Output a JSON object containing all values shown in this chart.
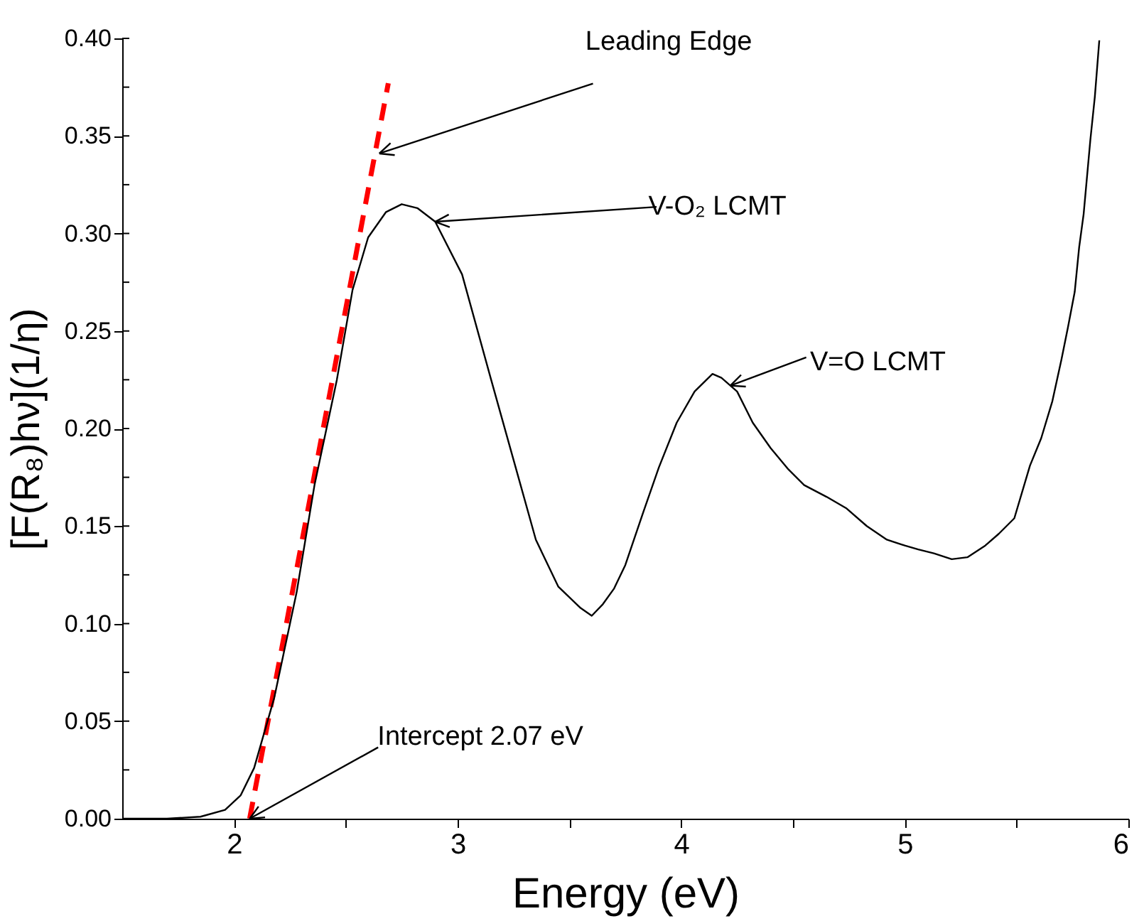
{
  "chart_data": {
    "type": "line",
    "xlabel": "Energy (eV)",
    "ylabel": "[F(R₈)hν](1/η)",
    "xlim": [
      1.5,
      6
    ],
    "ylim": [
      0,
      0.4
    ],
    "xticks": [
      {
        "value": 2,
        "label": "2"
      },
      {
        "value": 2.5,
        "label": null
      },
      {
        "value": 3,
        "label": "3"
      },
      {
        "value": 3.5,
        "label": null
      },
      {
        "value": 4,
        "label": "4"
      },
      {
        "value": 4.5,
        "label": null
      },
      {
        "value": 5,
        "label": "5"
      },
      {
        "value": 5.5,
        "label": null
      },
      {
        "value": 6,
        "label": "6"
      }
    ],
    "yticks": [
      {
        "value": 0,
        "label": "0.00"
      },
      {
        "value": 0.025,
        "label": null
      },
      {
        "value": 0.05,
        "label": "0.05"
      },
      {
        "value": 0.075,
        "label": null
      },
      {
        "value": 0.1,
        "label": "0.10"
      },
      {
        "value": 0.125,
        "label": null
      },
      {
        "value": 0.15,
        "label": "0.15"
      },
      {
        "value": 0.175,
        "label": null
      },
      {
        "value": 0.2,
        "label": "0.20"
      },
      {
        "value": 0.225,
        "label": null
      },
      {
        "value": 0.25,
        "label": "0.25"
      },
      {
        "value": 0.275,
        "label": null
      },
      {
        "value": 0.3,
        "label": "0.30"
      },
      {
        "value": 0.325,
        "label": null
      },
      {
        "value": 0.35,
        "label": "0.35"
      },
      {
        "value": 0.375,
        "label": null
      },
      {
        "value": 0.4,
        "label": "0.40"
      }
    ],
    "grid": false,
    "marker": "none",
    "series": [
      {
        "color": "#000000",
        "line_style": "solid",
        "x": [
          1.5,
          1.7,
          1.85,
          1.96,
          2.03,
          2.09,
          2.18,
          2.28,
          2.36,
          2.46,
          2.53,
          2.6,
          2.68,
          2.75,
          2.82,
          2.9,
          3.02,
          3.15,
          3.25,
          3.35,
          3.45,
          3.55,
          3.6,
          3.65,
          3.7,
          3.75,
          3.83,
          3.9,
          3.98,
          4.06,
          4.14,
          4.18,
          4.25,
          4.32,
          4.4,
          4.48,
          4.55,
          4.65,
          4.74,
          4.83,
          4.92,
          5.0,
          5.06,
          5.13,
          5.21,
          5.28,
          5.36,
          5.42,
          5.49,
          5.56,
          5.61,
          5.66,
          5.7,
          5.73,
          5.76,
          5.78,
          5.8,
          5.83,
          5.85,
          5.87
        ],
        "values": [
          0,
          0,
          0.001,
          0.0045,
          0.012,
          0.026,
          0.062,
          0.116,
          0.171,
          0.225,
          0.271,
          0.298,
          0.311,
          0.315,
          0.313,
          0.306,
          0.279,
          0.225,
          0.184,
          0.143,
          0.119,
          0.108,
          0.104,
          0.11,
          0.118,
          0.13,
          0.157,
          0.18,
          0.203,
          0.219,
          0.228,
          0.226,
          0.219,
          0.203,
          0.19,
          0.179,
          0.171,
          0.165,
          0.159,
          0.15,
          0.143,
          0.14,
          0.138,
          0.136,
          0.133,
          0.134,
          0.14,
          0.146,
          0.154,
          0.181,
          0.195,
          0.214,
          0.235,
          0.252,
          0.27,
          0.293,
          0.31,
          0.348,
          0.37,
          0.399
        ]
      },
      {
        "type": "line",
        "color": "#ff0000",
        "line_style": "dashed",
        "x": [
          2.07,
          2.69
        ],
        "values": [
          0,
          0.377
        ]
      }
    ],
    "annotations": [
      {
        "text": "Leading Edge",
        "x": 2.65,
        "y": 0.341
      },
      {
        "text": "V-O₂ LCMT",
        "x": 2.9,
        "y": 0.306
      },
      {
        "text": "V=O LCMT",
        "x": 4.22,
        "y": 0.222
      },
      {
        "text": "Intercept 2.07 eV",
        "x": 2.07,
        "y": 0
      }
    ]
  }
}
